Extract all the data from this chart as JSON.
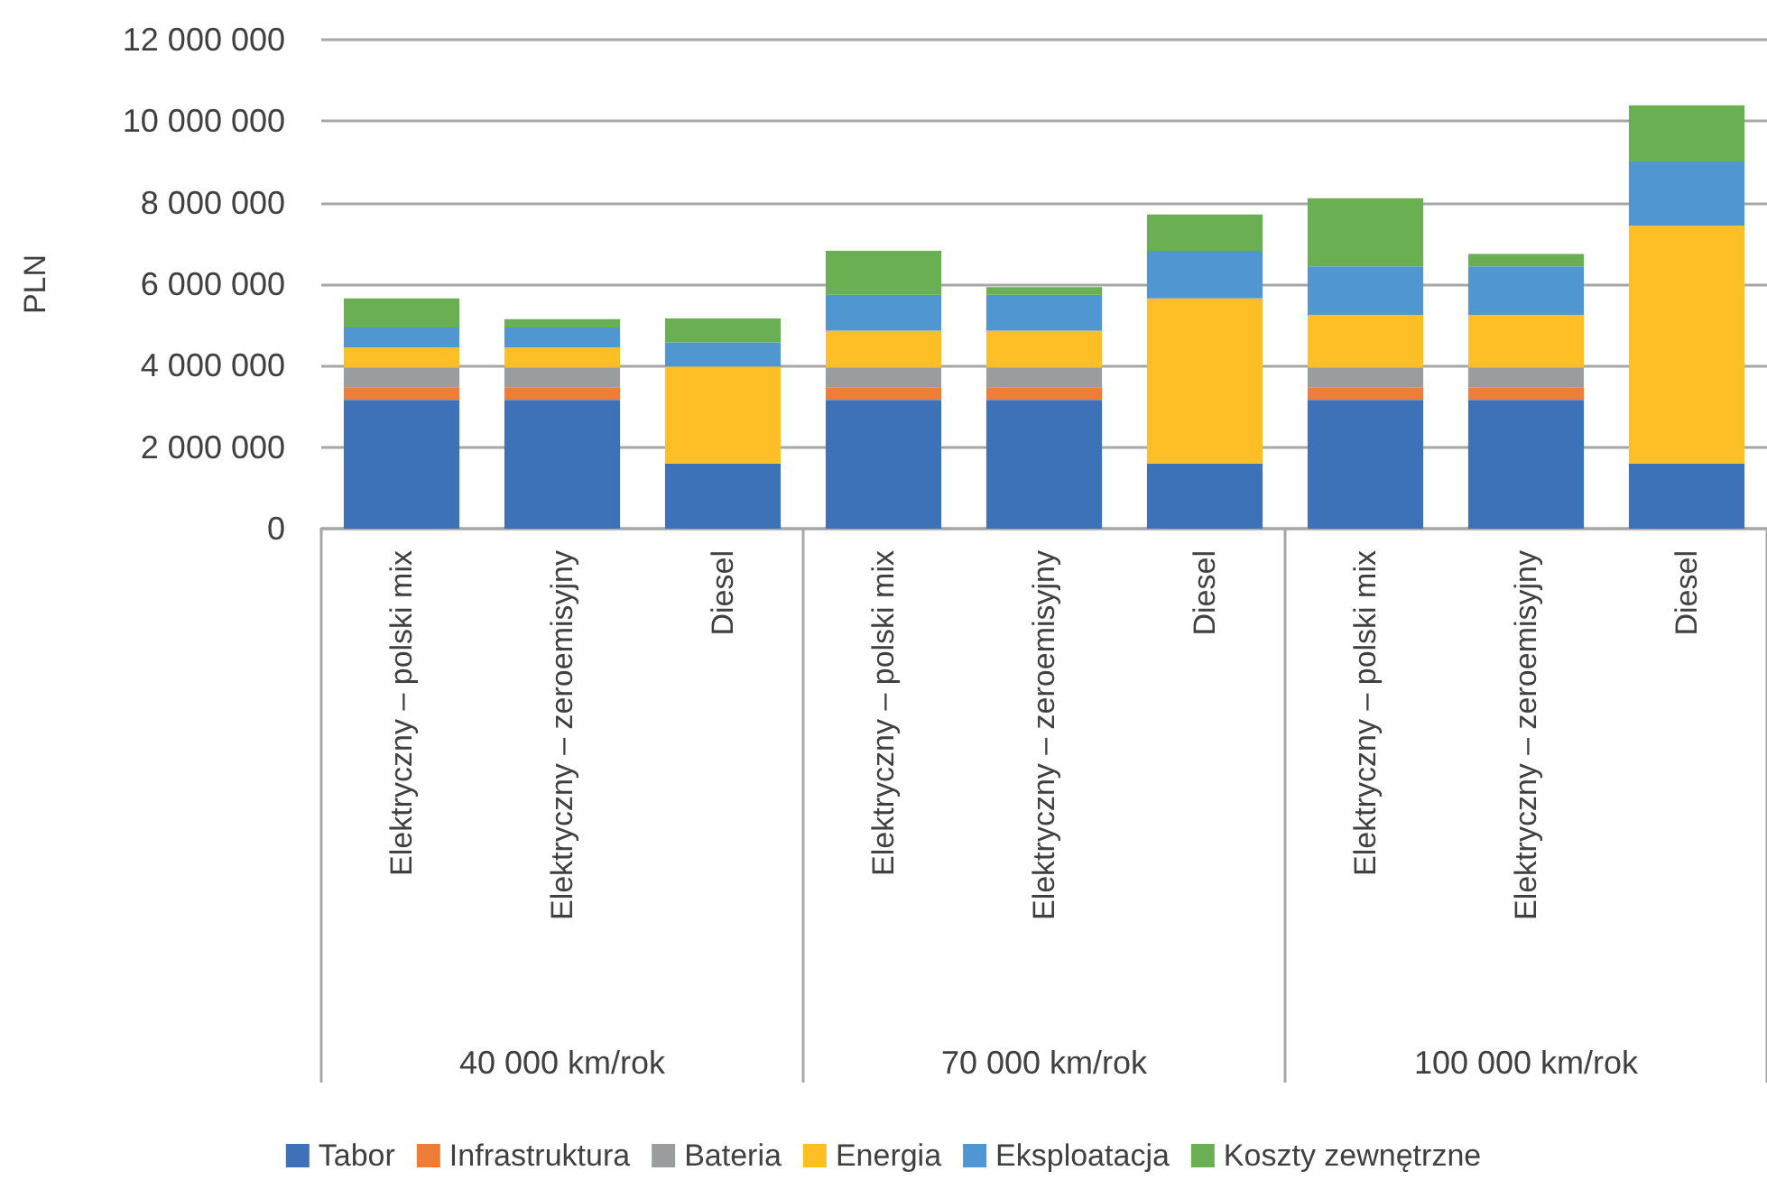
{
  "chart_data": {
    "type": "bar",
    "stacked": true,
    "ylabel": "PLN",
    "categories": [
      "Elektryczny – polski mix",
      "Elektryczny – zeroemisyjny",
      "Diesel",
      "Elektryczny – polski mix",
      "Elektryczny – zeroemisyjny",
      "Diesel",
      "Elektryczny – polski mix",
      "Elektryczny – zeroemisyjny",
      "Diesel"
    ],
    "series": [
      {
        "name": "Tabor",
        "color": "#3d72b9",
        "values": [
          3160000,
          3160000,
          1600000,
          3160000,
          3160000,
          1600000,
          3160000,
          3160000,
          1600000
        ]
      },
      {
        "name": "Infrastruktura",
        "color": "#ef7d3a",
        "values": [
          310000,
          310000,
          0,
          310000,
          310000,
          0,
          310000,
          310000,
          0
        ]
      },
      {
        "name": "Bateria",
        "color": "#9a9c9d",
        "values": [
          490000,
          490000,
          0,
          490000,
          490000,
          0,
          490000,
          490000,
          0
        ]
      },
      {
        "name": "Energia",
        "color": "#fdbe26",
        "values": [
          490000,
          490000,
          2380000,
          900000,
          900000,
          4050000,
          1290000,
          1290000,
          5840000
        ]
      },
      {
        "name": "Eksploatacja",
        "color": "#5096d1",
        "values": [
          490000,
          490000,
          590000,
          880000,
          880000,
          1170000,
          1190000,
          1190000,
          1570000
        ]
      },
      {
        "name": "Koszty zewnętrzne",
        "color": "#6ab053",
        "values": [
          710000,
          200000,
          590000,
          1080000,
          190000,
          890000,
          1670000,
          300000,
          1380000
        ]
      }
    ],
    "ylim": [
      0,
      12000000
    ],
    "yticks": [
      {
        "value": 0,
        "label": "0"
      },
      {
        "value": 2000000,
        "label": "2 000 000"
      },
      {
        "value": 4000000,
        "label": "4 000 000"
      },
      {
        "value": 6000000,
        "label": "6 000 000"
      },
      {
        "value": 8000000,
        "label": "8 000 000"
      },
      {
        "value": 10000000,
        "label": "10 000 000"
      },
      {
        "value": 12000000,
        "label": "12 000 000"
      }
    ],
    "grid": "y",
    "legend": "bottom",
    "annotations": [
      "40 000 km/rok",
      "70 000 km/rok",
      "100 000 km/rok"
    ]
  }
}
